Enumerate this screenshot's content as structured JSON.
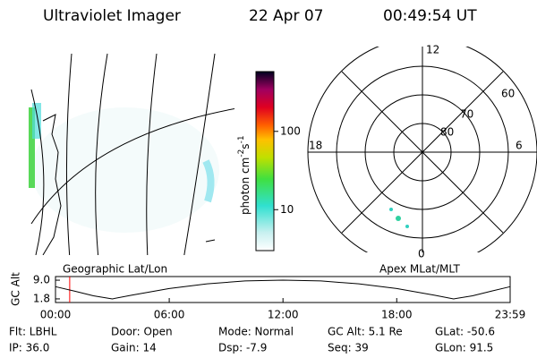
{
  "header": {
    "title": "Ultraviolet Imager",
    "date": "22 Apr 07",
    "time": "00:49:54 UT"
  },
  "colorbar": {
    "label": "photon cm",
    "exp1": "-2",
    "unit2": "s",
    "exp2": "-1",
    "lim": [
      3,
      580
    ],
    "log": true,
    "ticks": [
      10,
      100
    ]
  },
  "polar": {
    "hours": [
      "12",
      "18",
      "6",
      "0"
    ],
    "rings": [
      60,
      70,
      80
    ]
  },
  "map_labels": {
    "left": "Geographic Lat/Lon",
    "right": "Apex MLat/MLT"
  },
  "chart_data": {
    "type": "line",
    "ylabel": "GC Alt",
    "x": [
      0,
      1,
      2,
      3,
      4,
      6,
      8,
      10,
      12,
      14,
      16,
      18,
      20,
      21,
      22,
      23,
      23.983
    ],
    "series": [
      {
        "name": "GC Alt",
        "color": "#000000",
        "values": [
          6.5,
          4.8,
          3.0,
          1.8,
          3.2,
          5.8,
          7.6,
          8.7,
          9.0,
          8.7,
          7.6,
          5.8,
          3.2,
          1.8,
          3.0,
          4.8,
          6.5
        ]
      }
    ],
    "marker_x": 0.75,
    "marker_color": "#ff0000",
    "xlim": [
      0,
      23.983
    ],
    "ylim": [
      0.4,
      10.4
    ],
    "xticks": [
      {
        "value": 0,
        "label": "00:00"
      },
      {
        "value": 6,
        "label": "06:00"
      },
      {
        "value": 12,
        "label": "12:00"
      },
      {
        "value": 18,
        "label": "18:00"
      },
      {
        "value": 23.983,
        "label": "23:59"
      }
    ],
    "yticks": [
      {
        "value": 9,
        "label": "9.0"
      },
      1.8
    ]
  },
  "footer": [
    [
      "Flt: LBHL",
      "IP: 36.0"
    ],
    [
      "Door: Open",
      "Gain: 14"
    ],
    [
      "Mode: Normal",
      "Dsp:    -7.9"
    ],
    [
      "GC Alt: 5.1 Re",
      "Seq: 39"
    ],
    [
      "GLat: -50.6",
      "GLon:  91.5"
    ]
  ]
}
